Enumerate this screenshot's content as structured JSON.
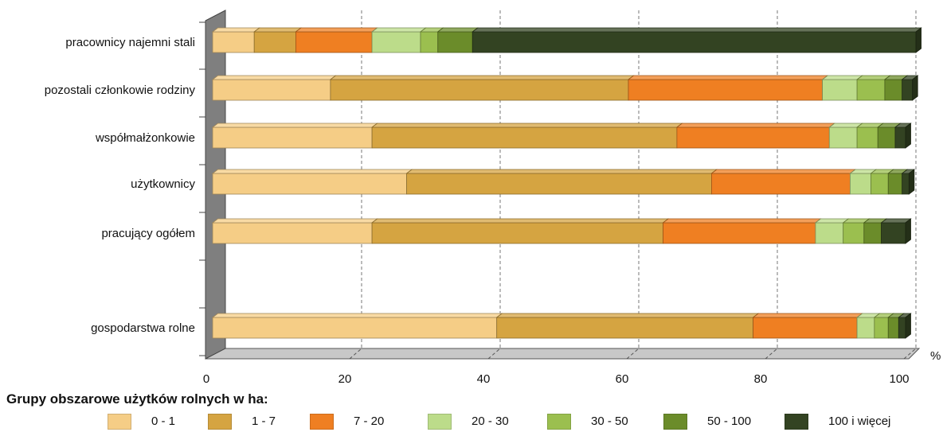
{
  "chart_data": {
    "type": "bar",
    "orientation": "horizontal",
    "stacked": true,
    "percent": true,
    "categories": [
      "pracownicy najemni stali",
      "pozostali członkowie rodziny",
      "współmałżonkowie",
      "użytkownicy",
      "pracujący ogółem",
      "gospodarstwa rolne"
    ],
    "series": [
      {
        "name": "0 - 1",
        "color": "#f5cd86",
        "values": [
          6,
          17,
          23,
          28,
          23,
          41
        ]
      },
      {
        "name": "1 - 7",
        "color": "#d5a441",
        "values": [
          6,
          43,
          44,
          44,
          42,
          37
        ]
      },
      {
        "name": "7 - 20",
        "color": "#ef7f22",
        "values": [
          11,
          28,
          22,
          20,
          22,
          15
        ]
      },
      {
        "name": "20 - 30",
        "color": "#bcdc8a",
        "values": [
          7,
          5,
          4,
          3,
          4,
          2.5
        ]
      },
      {
        "name": "30 - 50",
        "color": "#9bbf4f",
        "values": [
          2.5,
          4,
          3,
          2.5,
          3,
          2
        ]
      },
      {
        "name": "50 - 100",
        "color": "#6b8c2a",
        "values": [
          5,
          2.5,
          2.5,
          2,
          2.5,
          1.5
        ]
      },
      {
        "name": "100 i więcej",
        "color": "#334322",
        "values": [
          64,
          1.5,
          1.5,
          1,
          3.5,
          1
        ]
      }
    ],
    "xlim": [
      0,
      100
    ],
    "xticks": [
      0,
      20,
      40,
      60,
      80,
      100
    ],
    "xunit": "%",
    "grid": "vertical-dashed",
    "legend_title": "Grupy obszarowe użytków rolnych w ha:",
    "legend_position": "bottom"
  }
}
